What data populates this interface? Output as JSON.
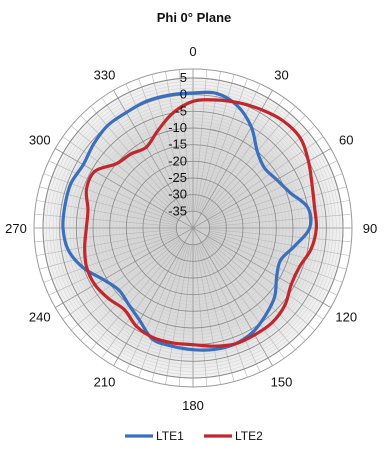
{
  "chart_data": {
    "type": "polar-line",
    "title": "Phi 0° Plane",
    "angle_ticks": [
      0,
      30,
      60,
      90,
      120,
      150,
      180,
      210,
      240,
      270,
      300,
      330
    ],
    "angle_direction": "clockwise",
    "angle_zero": "top",
    "radial_ticks": [
      5,
      0,
      -5,
      -10,
      -15,
      -20,
      -25,
      -30,
      -35
    ],
    "rlim": [
      -40,
      5
    ],
    "grid": true,
    "legend_position": "bottom",
    "series": [
      {
        "name": "LTE1",
        "color": "#3a6fc0",
        "points": [
          [
            0,
            0.5
          ],
          [
            10,
            1
          ],
          [
            20,
            -1
          ],
          [
            30,
            -5
          ],
          [
            40,
            -10
          ],
          [
            50,
            -12
          ],
          [
            60,
            -11
          ],
          [
            70,
            -9
          ],
          [
            80,
            -5
          ],
          [
            90,
            -5
          ],
          [
            100,
            -9
          ],
          [
            110,
            -12
          ],
          [
            120,
            -11
          ],
          [
            130,
            -8
          ],
          [
            140,
            -6
          ],
          [
            150,
            -4
          ],
          [
            160,
            -3
          ],
          [
            170,
            -3
          ],
          [
            180,
            -3.5
          ],
          [
            190,
            -4
          ],
          [
            200,
            -4.5
          ],
          [
            210,
            -8
          ],
          [
            220,
            -10
          ],
          [
            230,
            -11
          ],
          [
            240,
            -9
          ],
          [
            250,
            -5
          ],
          [
            260,
            -2
          ],
          [
            270,
            -1
          ],
          [
            280,
            -1
          ],
          [
            290,
            -1
          ],
          [
            300,
            -2
          ],
          [
            310,
            -1
          ],
          [
            320,
            0
          ],
          [
            330,
            0
          ],
          [
            340,
            0.5
          ],
          [
            350,
            0.5
          ]
        ]
      },
      {
        "name": "LTE2",
        "color": "#c0282e",
        "points": [
          [
            0,
            -2
          ],
          [
            10,
            -1
          ],
          [
            20,
            0
          ],
          [
            30,
            1
          ],
          [
            40,
            2
          ],
          [
            50,
            2
          ],
          [
            60,
            0
          ],
          [
            70,
            -2
          ],
          [
            80,
            -3
          ],
          [
            90,
            -3
          ],
          [
            100,
            -4
          ],
          [
            110,
            -6
          ],
          [
            120,
            -6
          ],
          [
            130,
            -4
          ],
          [
            140,
            -3
          ],
          [
            150,
            -3
          ],
          [
            160,
            -3
          ],
          [
            170,
            -4
          ],
          [
            180,
            -5
          ],
          [
            190,
            -5
          ],
          [
            200,
            -5
          ],
          [
            210,
            -6
          ],
          [
            220,
            -8
          ],
          [
            230,
            -7
          ],
          [
            240,
            -6
          ],
          [
            250,
            -6
          ],
          [
            260,
            -7
          ],
          [
            270,
            -8
          ],
          [
            280,
            -8
          ],
          [
            290,
            -6
          ],
          [
            300,
            -6
          ],
          [
            310,
            -10
          ],
          [
            320,
            -11
          ],
          [
            330,
            -12
          ],
          [
            340,
            -9
          ],
          [
            350,
            -5
          ]
        ]
      }
    ]
  }
}
